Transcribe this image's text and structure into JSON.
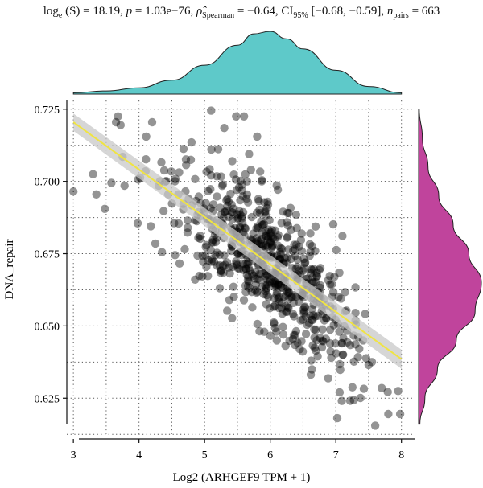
{
  "subtitle": {
    "log_prefix": "log",
    "log_base": "e",
    "log_arg": " (S) = 18.19, ",
    "p_symbol": "p",
    "p_value": " = 1.03e−76, ",
    "rho_symbol": "ρ̂",
    "rho_sub": "Spearman",
    "rho_value": " = −0.64, CI",
    "ci_sub": "95%",
    "ci_value": " [−0.68, −0.59], ",
    "n_symbol": "n",
    "n_sub": "pairs",
    "n_value": " = 663"
  },
  "colors": {
    "points": "#000000",
    "fit_line": "#f0e442",
    "confidence_band": "#c8c8c8",
    "top_density": "#5ec9c9",
    "right_density": "#c0449c",
    "grid": "#555555"
  },
  "chart_data": {
    "type": "scatter",
    "title": "",
    "xlabel": "Log2 (ARHGEF9 TPM + 1)",
    "ylabel": "DNA_repair",
    "xlim": [
      2.9,
      8.2
    ],
    "ylim": [
      0.612,
      0.728
    ],
    "x_ticks": [
      3,
      4,
      5,
      6,
      7,
      8
    ],
    "x_tick_labels": [
      "3",
      "4",
      "5",
      "6",
      "7",
      "8"
    ],
    "y_ticks": [
      0.625,
      0.65,
      0.675,
      0.7,
      0.725
    ],
    "y_tick_labels": [
      "0.625",
      "0.650",
      "0.675",
      "0.700",
      "0.725"
    ],
    "grid": true,
    "grid_style": "dotted",
    "n_points": 663,
    "fit": {
      "method": "linear",
      "x": [
        3.0,
        8.0
      ],
      "y": [
        0.7205,
        0.6385
      ]
    },
    "confidence_band": {
      "x": [
        3.0,
        8.0
      ],
      "upper": [
        0.7235,
        0.6418
      ],
      "lower": [
        0.7175,
        0.6352
      ]
    },
    "marginal_x_density": {
      "x": [
        3.0,
        3.5,
        4.0,
        4.5,
        5.0,
        5.5,
        5.75,
        6.0,
        6.25,
        6.5,
        7.0,
        7.5,
        8.0
      ],
      "density": [
        0.02,
        0.05,
        0.1,
        0.22,
        0.46,
        0.78,
        0.96,
        1.0,
        0.88,
        0.72,
        0.38,
        0.12,
        0.02
      ]
    },
    "marginal_y_density": {
      "y": [
        0.616,
        0.625,
        0.635,
        0.645,
        0.655,
        0.665,
        0.675,
        0.685,
        0.695,
        0.705,
        0.715,
        0.725
      ],
      "density": [
        0.02,
        0.1,
        0.3,
        0.6,
        0.9,
        1.0,
        0.8,
        0.55,
        0.32,
        0.15,
        0.06,
        0.01
      ]
    },
    "points_x": [
      3.0,
      3.3,
      3.35,
      3.48,
      3.58,
      3.65,
      3.68,
      3.72,
      3.75,
      3.78,
      3.98,
      4.1,
      4.11,
      4.2,
      4.25,
      4.3,
      4.35,
      4.55,
      4.6,
      4.8,
      5.1,
      5.3,
      5.48,
      5.6,
      5.8,
      7.3,
      7.5,
      7.55,
      7.7,
      7.8,
      7.95,
      7.98,
      7.6
    ],
    "points_y": [
      0.6965,
      0.7025,
      0.6955,
      0.6905,
      0.6995,
      0.7205,
      0.7225,
      0.7195,
      0.7085,
      0.6985,
      0.6855,
      0.7035,
      0.7155,
      0.7205,
      0.6785,
      0.6985,
      0.6755,
      0.6745,
      0.6955,
      0.7135,
      0.7245,
      0.7185,
      0.7225,
      0.7225,
      0.7155,
      0.6545,
      0.6365,
      0.6375,
      0.6285,
      0.6195,
      0.6275,
      0.6195,
      0.6155
    ]
  }
}
